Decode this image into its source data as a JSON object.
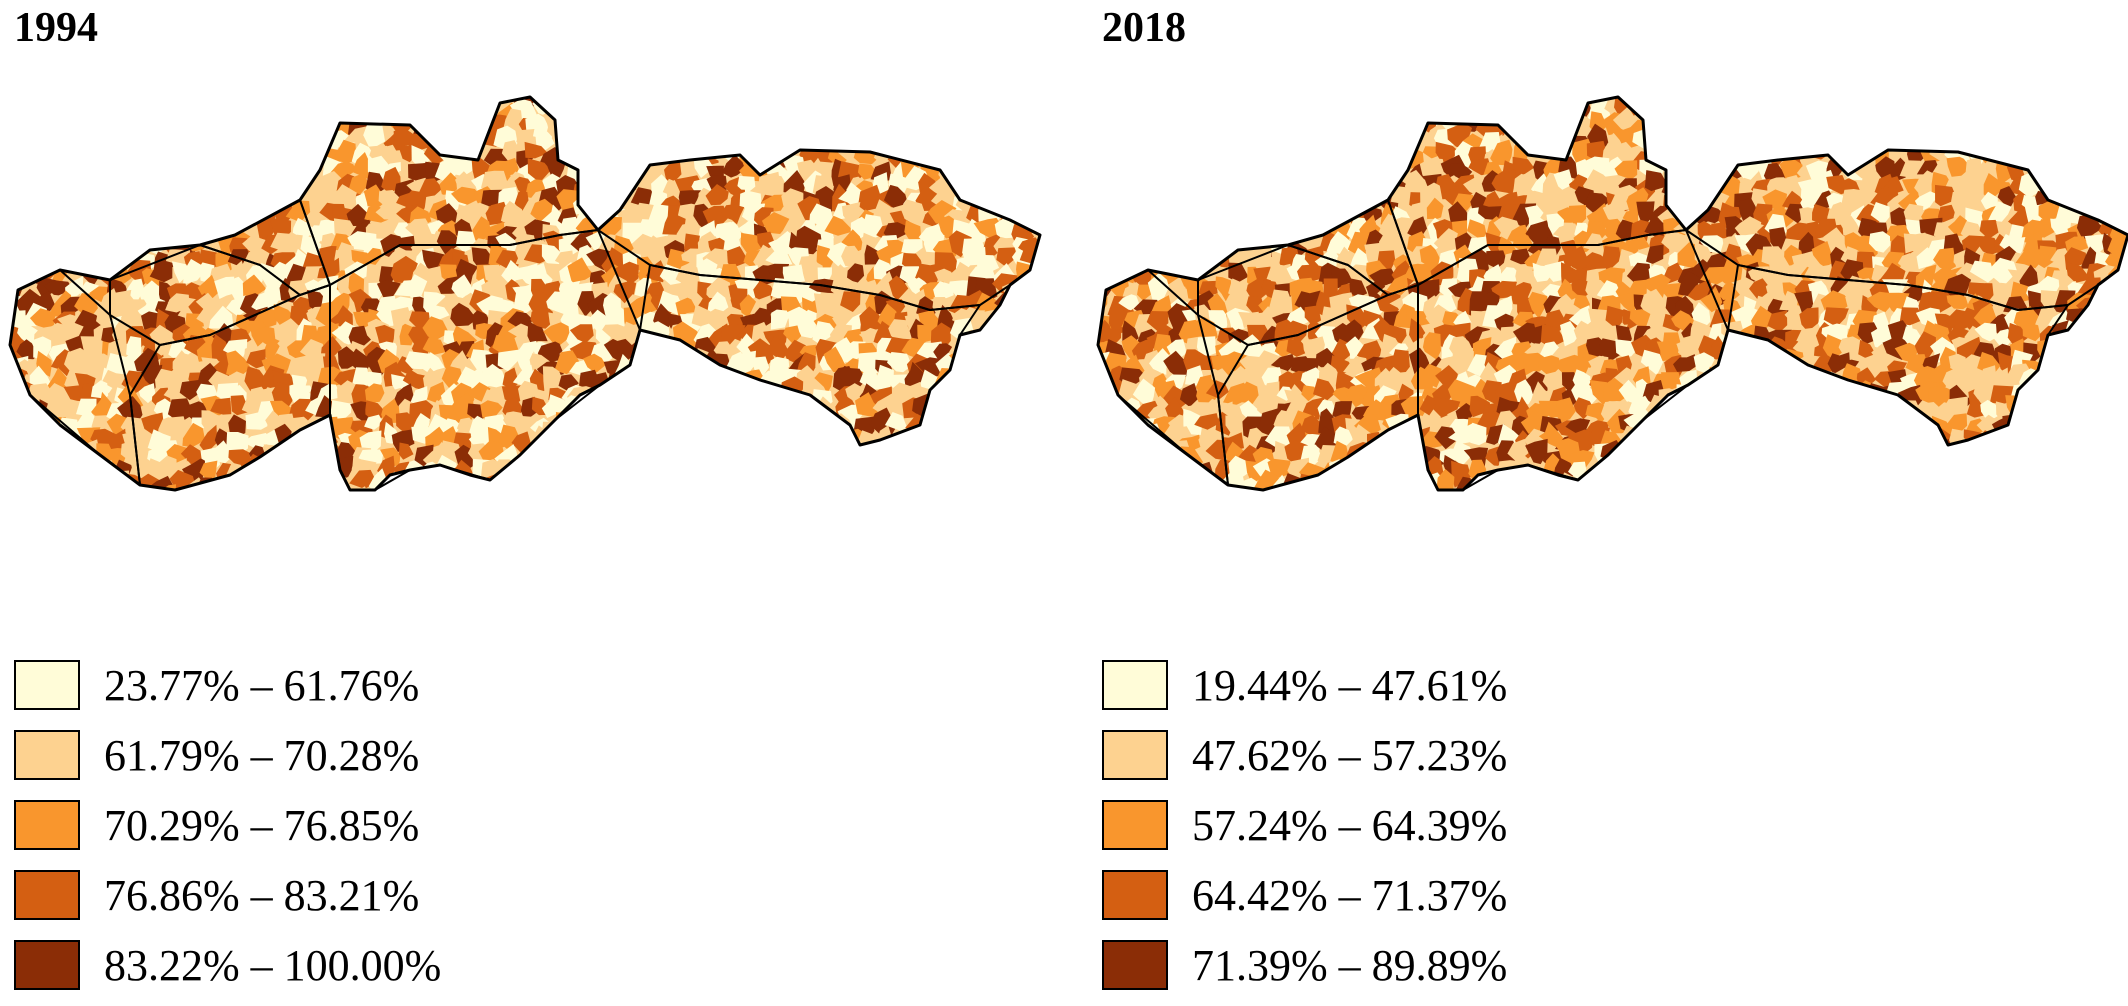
{
  "maps": [
    {
      "year": "1994",
      "legend": [
        {
          "label": "23.77% – 61.76%",
          "color": "#fffcd8"
        },
        {
          "label": "61.79% – 70.28%",
          "color": "#fdd290"
        },
        {
          "label": "70.29% – 76.85%",
          "color": "#f9962d"
        },
        {
          "label": "76.86% – 83.21%",
          "color": "#d45f12"
        },
        {
          "label": "83.22% – 100.00%",
          "color": "#8b2d06"
        }
      ],
      "color_weights": [
        0.25,
        0.25,
        0.17,
        0.19,
        0.14
      ]
    },
    {
      "year": "2018",
      "legend": [
        {
          "label": "19.44% – 47.61%",
          "color": "#fffcd8"
        },
        {
          "label": "47.62% – 57.23%",
          "color": "#fdd290"
        },
        {
          "label": "57.24% – 64.39%",
          "color": "#f9962d"
        },
        {
          "label": "64.42% – 71.37%",
          "color": "#d45f12"
        },
        {
          "label": "71.39% – 89.89%",
          "color": "#8b2d06"
        }
      ],
      "color_weights": [
        0.16,
        0.24,
        0.22,
        0.22,
        0.16
      ]
    }
  ]
}
